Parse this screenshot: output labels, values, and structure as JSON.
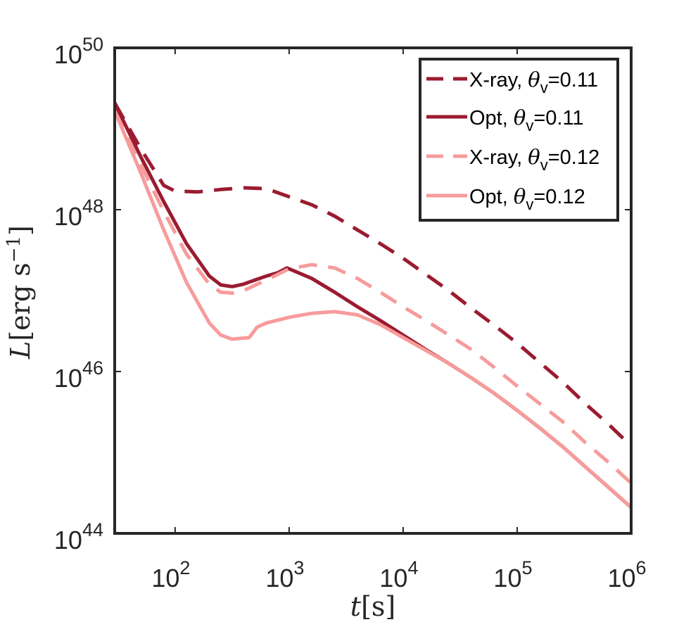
{
  "chart_data": {
    "type": "line",
    "title": "",
    "xlabel": {
      "var": "t",
      "unit": "[s]"
    },
    "ylabel": {
      "var": "L",
      "unit": "[erg s",
      "exp": "−1",
      "close": "]"
    },
    "xscale": "log",
    "yscale": "log",
    "xlim_log10": [
      1.47,
      6.0
    ],
    "ylim_log10": [
      44,
      50
    ],
    "xticks": [
      {
        "exp": 2,
        "base": "10",
        "sup": "2"
      },
      {
        "exp": 3,
        "base": "10",
        "sup": "3"
      },
      {
        "exp": 4,
        "base": "10",
        "sup": "4"
      },
      {
        "exp": 5,
        "base": "10",
        "sup": "5"
      },
      {
        "exp": 6,
        "base": "10",
        "sup": "6"
      }
    ],
    "yticks": [
      {
        "exp": 44,
        "base": "10",
        "sup": "44"
      },
      {
        "exp": 46,
        "base": "10",
        "sup": "46"
      },
      {
        "exp": 48,
        "base": "10",
        "sup": "48"
      },
      {
        "exp": 50,
        "base": "10",
        "sup": "50"
      }
    ],
    "grid": false,
    "legend_position": "top-right",
    "series": [
      {
        "name": "X-ray, θv=0.11",
        "label_main": "X-ray, ",
        "label_theta": "θ",
        "label_sub": "v",
        "label_val": "=0.11",
        "color": "#9b1b30",
        "dash": "dashed",
        "log_points": [
          [
            1.47,
            49.32
          ],
          [
            1.7,
            48.75
          ],
          [
            1.9,
            48.3
          ],
          [
            2.0,
            48.23
          ],
          [
            2.2,
            48.22
          ],
          [
            2.4,
            48.25
          ],
          [
            2.6,
            48.27
          ],
          [
            2.8,
            48.26
          ],
          [
            3.0,
            48.16
          ],
          [
            3.2,
            48.06
          ],
          [
            3.4,
            47.92
          ],
          [
            3.6,
            47.75
          ],
          [
            3.8,
            47.58
          ],
          [
            4.0,
            47.4
          ],
          [
            4.2,
            47.2
          ],
          [
            4.4,
            47.0
          ],
          [
            4.6,
            46.78
          ],
          [
            4.8,
            46.57
          ],
          [
            5.0,
            46.35
          ],
          [
            5.2,
            46.11
          ],
          [
            5.4,
            45.87
          ],
          [
            5.6,
            45.6
          ],
          [
            5.8,
            45.35
          ],
          [
            6.0,
            45.08
          ]
        ]
      },
      {
        "name": "Opt, θv=0.11",
        "label_main": "Opt, ",
        "label_theta": "θ",
        "label_sub": "v",
        "label_val": "=0.11",
        "color": "#9b1b30",
        "dash": "solid",
        "log_points": [
          [
            1.47,
            49.32
          ],
          [
            1.7,
            48.65
          ],
          [
            1.9,
            48.1
          ],
          [
            2.1,
            47.58
          ],
          [
            2.3,
            47.18
          ],
          [
            2.4,
            47.07
          ],
          [
            2.5,
            47.05
          ],
          [
            2.6,
            47.08
          ],
          [
            2.7,
            47.13
          ],
          [
            2.8,
            47.18
          ],
          [
            2.9,
            47.22
          ],
          [
            2.98,
            47.28
          ],
          [
            3.05,
            47.24
          ],
          [
            3.2,
            47.15
          ],
          [
            3.4,
            46.98
          ],
          [
            3.6,
            46.8
          ],
          [
            3.8,
            46.63
          ],
          [
            4.0,
            46.45
          ],
          [
            4.2,
            46.27
          ],
          [
            4.4,
            46.1
          ],
          [
            4.6,
            45.92
          ],
          [
            4.8,
            45.73
          ],
          [
            5.0,
            45.52
          ],
          [
            5.2,
            45.3
          ],
          [
            5.4,
            45.07
          ],
          [
            5.6,
            44.82
          ],
          [
            5.8,
            44.57
          ],
          [
            6.0,
            44.32
          ]
        ]
      },
      {
        "name": "X-ray, θv=0.12",
        "label_main": "X-ray, ",
        "label_theta": "θ",
        "label_sub": "v",
        "label_val": "=0.12",
        "color": "#f79b9b",
        "dash": "dashed",
        "log_points": [
          [
            1.47,
            49.22
          ],
          [
            1.7,
            48.55
          ],
          [
            1.9,
            47.98
          ],
          [
            2.1,
            47.45
          ],
          [
            2.3,
            47.08
          ],
          [
            2.4,
            46.98
          ],
          [
            2.5,
            46.97
          ],
          [
            2.6,
            47.0
          ],
          [
            2.8,
            47.13
          ],
          [
            3.0,
            47.27
          ],
          [
            3.2,
            47.32
          ],
          [
            3.4,
            47.28
          ],
          [
            3.6,
            47.15
          ],
          [
            3.8,
            46.98
          ],
          [
            4.0,
            46.8
          ],
          [
            4.2,
            46.63
          ],
          [
            4.4,
            46.45
          ],
          [
            4.6,
            46.27
          ],
          [
            4.8,
            46.05
          ],
          [
            5.0,
            45.82
          ],
          [
            5.2,
            45.6
          ],
          [
            5.4,
            45.38
          ],
          [
            5.6,
            45.12
          ],
          [
            5.8,
            44.88
          ],
          [
            6.0,
            44.62
          ]
        ]
      },
      {
        "name": "Opt, θv=0.12",
        "label_main": "Opt, ",
        "label_theta": "θ",
        "label_sub": "v",
        "label_val": "=0.12",
        "color": "#f79b9b",
        "dash": "solid",
        "log_points": [
          [
            1.47,
            49.22
          ],
          [
            1.7,
            48.45
          ],
          [
            1.9,
            47.75
          ],
          [
            2.1,
            47.1
          ],
          [
            2.3,
            46.6
          ],
          [
            2.4,
            46.45
          ],
          [
            2.5,
            46.4
          ],
          [
            2.65,
            46.42
          ],
          [
            2.72,
            46.55
          ],
          [
            2.8,
            46.6
          ],
          [
            3.0,
            46.67
          ],
          [
            3.2,
            46.72
          ],
          [
            3.4,
            46.74
          ],
          [
            3.6,
            46.7
          ],
          [
            3.8,
            46.58
          ],
          [
            4.0,
            46.42
          ],
          [
            4.2,
            46.26
          ],
          [
            4.4,
            46.1
          ],
          [
            4.6,
            45.92
          ],
          [
            4.8,
            45.73
          ],
          [
            5.0,
            45.52
          ],
          [
            5.2,
            45.3
          ],
          [
            5.4,
            45.07
          ],
          [
            5.6,
            44.82
          ],
          [
            5.8,
            44.57
          ],
          [
            6.0,
            44.32
          ]
        ]
      }
    ]
  }
}
